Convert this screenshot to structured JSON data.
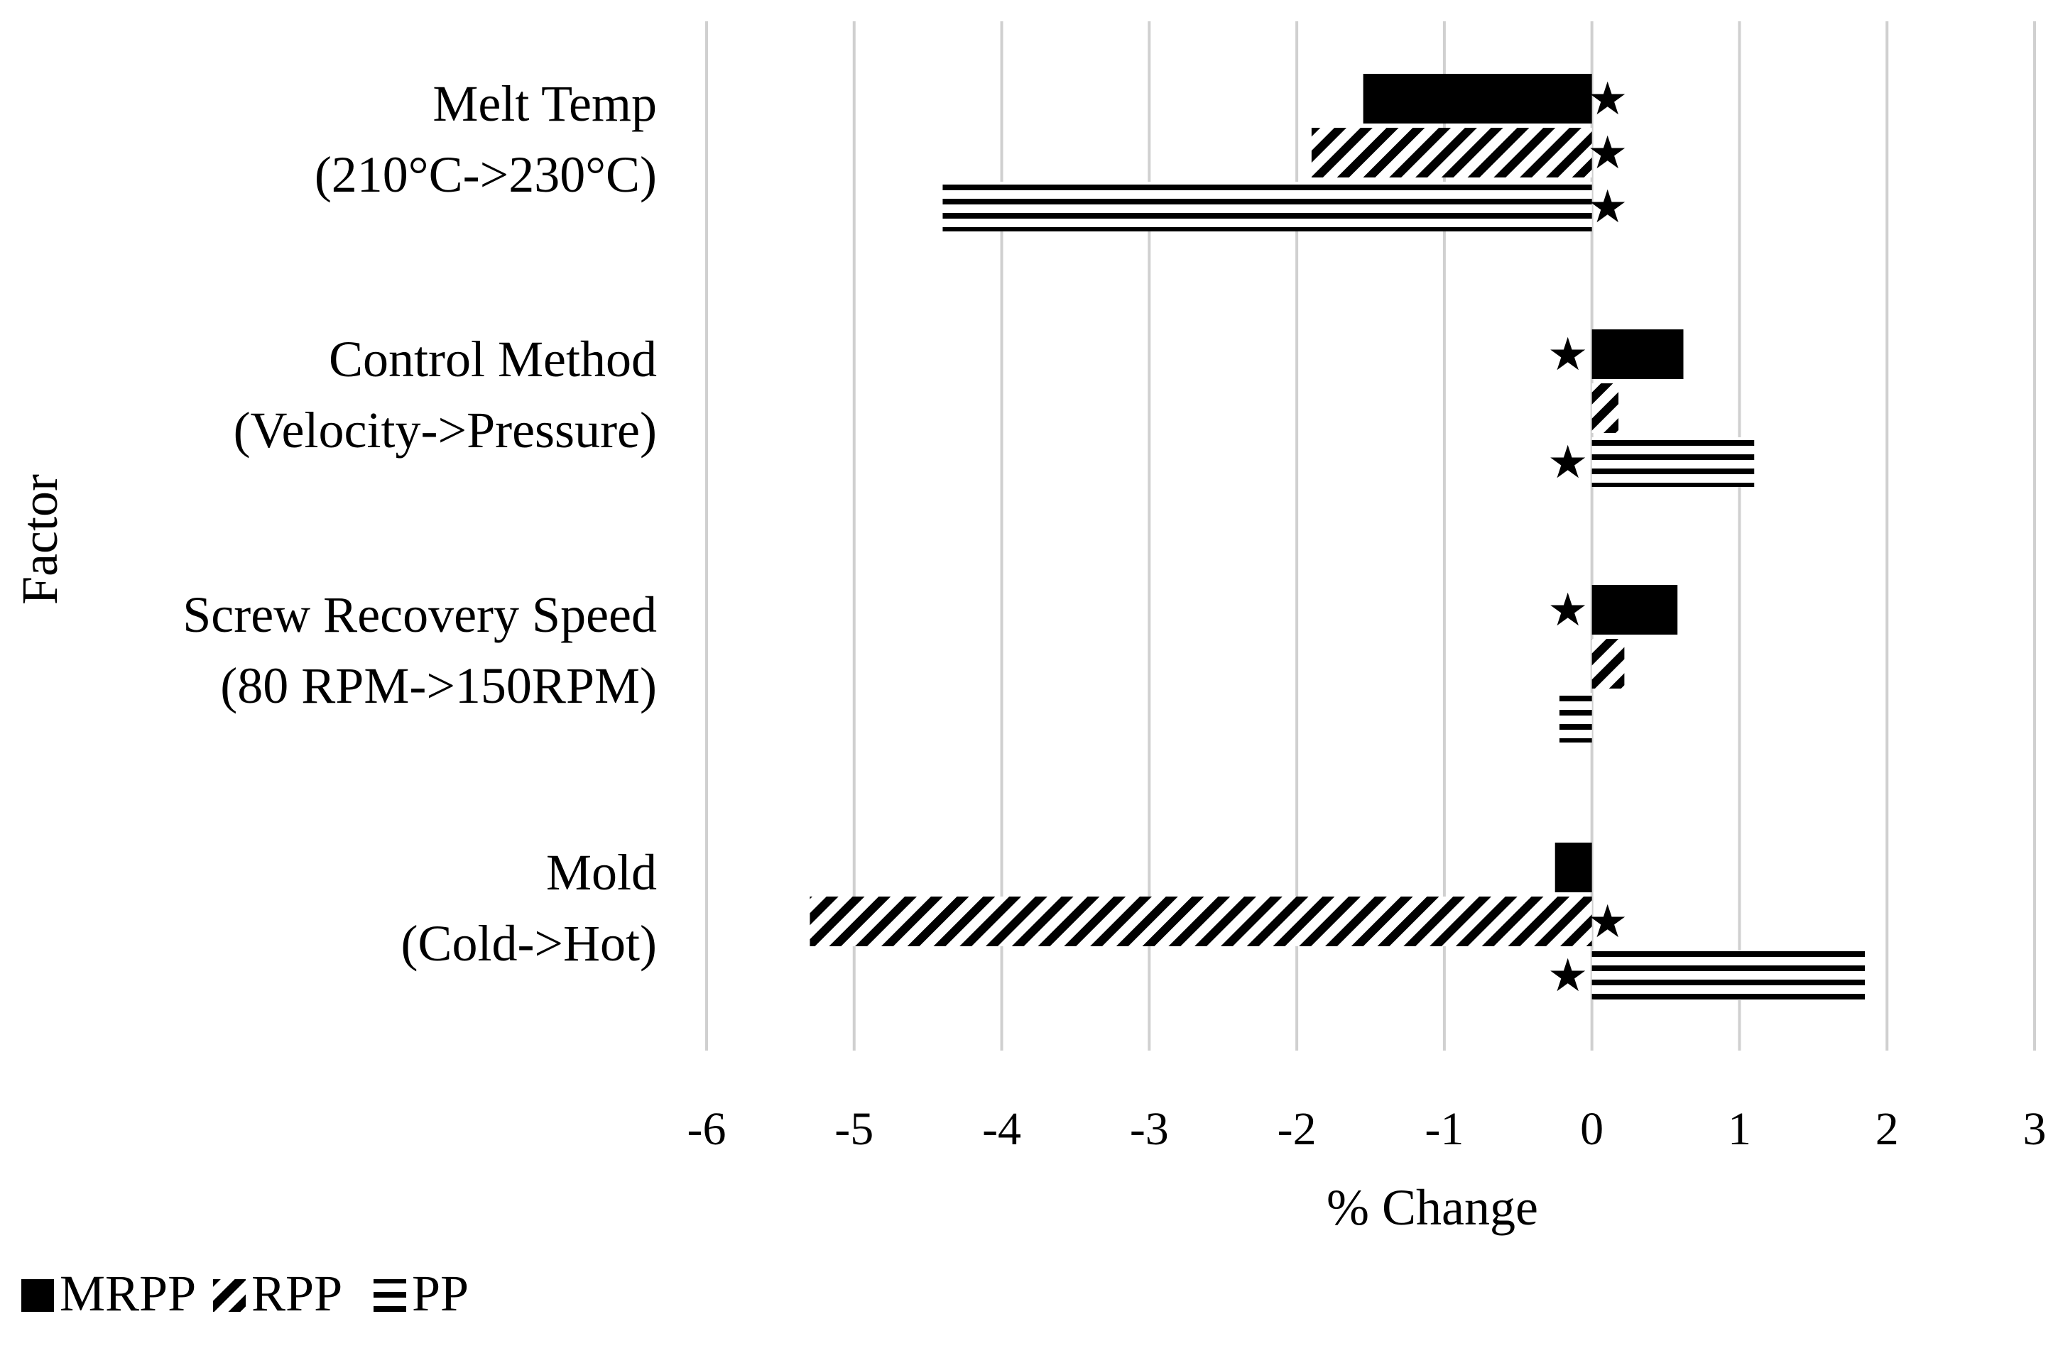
{
  "chart_data": {
    "type": "bar",
    "orientation": "horizontal",
    "xlabel": "% Change",
    "ylabel": "Factor",
    "xlim": [
      -6,
      3
    ],
    "xticks": [
      "-6",
      "-5",
      "-4",
      "-3",
      "-2",
      "-1",
      "0",
      "1",
      "2",
      "3"
    ],
    "grid": "vertical",
    "legend_position": "bottom-left",
    "categories": [
      {
        "line1": "Melt Temp",
        "line2": "(210°C->230°C)"
      },
      {
        "line1": "Control Method",
        "line2": "(Velocity->Pressure)"
      },
      {
        "line1": "Screw Recovery Speed",
        "line2": "(80 RPM->150RPM)"
      },
      {
        "line1": "Mold",
        "line2": "(Cold->Hot)"
      }
    ],
    "series": [
      {
        "name": "MRPP",
        "pattern": "solid",
        "values": [
          -1.55,
          0.62,
          0.58,
          -0.25
        ],
        "significant": [
          true,
          true,
          true,
          false
        ]
      },
      {
        "name": "RPP",
        "pattern": "diagonal",
        "values": [
          -1.9,
          0.18,
          0.22,
          -5.3
        ],
        "significant": [
          true,
          false,
          false,
          true
        ]
      },
      {
        "name": "PP",
        "pattern": "horizontal",
        "values": [
          -4.4,
          1.1,
          -0.22,
          1.85
        ],
        "significant": [
          true,
          true,
          false,
          true
        ]
      }
    ],
    "significance_marker": "★"
  }
}
